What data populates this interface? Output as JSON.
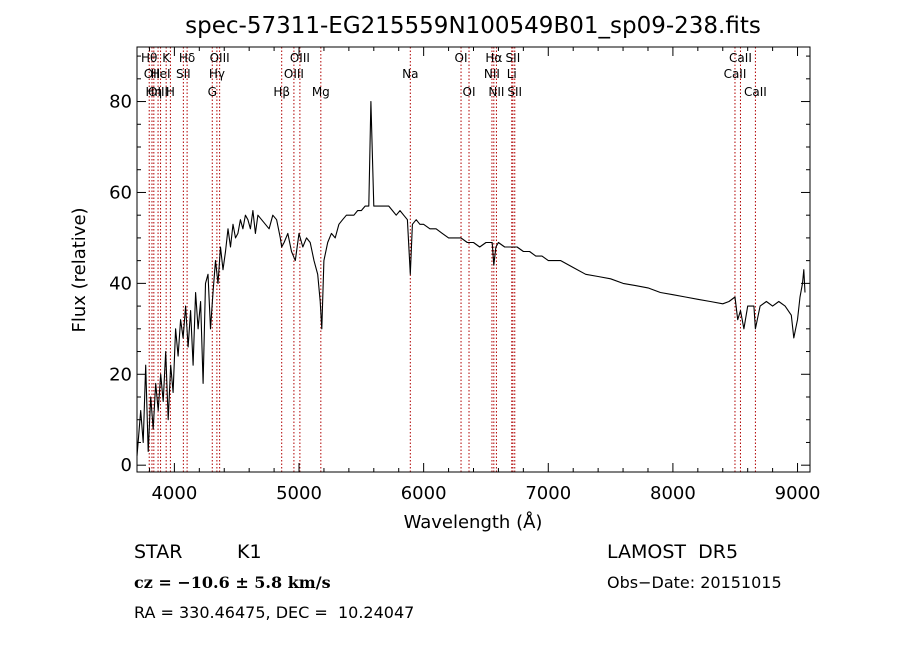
{
  "chart_data": {
    "type": "line",
    "title": "spec-57311-EG215559N100549B01_sp09-238.fits",
    "xlabel": "Wavelength (Å)",
    "ylabel": "Flux (relative)",
    "xlim": [
      3700,
      9100
    ],
    "ylim": [
      -1.5,
      92
    ],
    "x_ticks": [
      4000,
      5000,
      6000,
      7000,
      8000,
      9000
    ],
    "y_ticks": [
      0,
      20,
      40,
      60,
      80
    ],
    "grid": false,
    "line_color": "#000000",
    "marker_color": "#b00000",
    "series": [
      {
        "x": [
          3700,
          3730,
          3750,
          3770,
          3790,
          3810,
          3830,
          3850,
          3870,
          3890,
          3910,
          3930,
          3950,
          3970,
          3990,
          4010,
          4030,
          4050,
          4070,
          4090,
          4110,
          4130,
          4150,
          4170,
          4190,
          4210,
          4230,
          4250,
          4270,
          4290,
          4310,
          4330,
          4350,
          4370,
          4390,
          4410,
          4430,
          4450,
          4470,
          4490,
          4510,
          4530,
          4550,
          4570,
          4590,
          4610,
          4630,
          4650,
          4670,
          4700,
          4730,
          4760,
          4790,
          4820,
          4850,
          4861,
          4880,
          4910,
          4940,
          4970,
          5000,
          5030,
          5060,
          5090,
          5120,
          5150,
          5170,
          5183,
          5200,
          5230,
          5260,
          5290,
          5320,
          5350,
          5380,
          5410,
          5440,
          5470,
          5500,
          5530,
          5560,
          5577,
          5600,
          5630,
          5660,
          5690,
          5720,
          5750,
          5780,
          5810,
          5840,
          5870,
          5893,
          5910,
          5940,
          5970,
          6000,
          6050,
          6100,
          6150,
          6200,
          6250,
          6300,
          6350,
          6400,
          6450,
          6500,
          6550,
          6563,
          6580,
          6600,
          6650,
          6700,
          6750,
          6800,
          6850,
          6900,
          6950,
          7000,
          7100,
          7200,
          7300,
          7400,
          7500,
          7600,
          7700,
          7800,
          7900,
          8000,
          8100,
          8200,
          8300,
          8400,
          8450,
          8498,
          8520,
          8542,
          8570,
          8600,
          8650,
          8662,
          8700,
          8750,
          8800,
          8850,
          8900,
          8950,
          8970,
          9000,
          9020,
          9040,
          9050,
          9060
        ],
        "y": [
          2,
          12,
          5,
          22,
          3,
          15,
          8,
          18,
          12,
          20,
          14,
          25,
          10,
          22,
          16,
          30,
          24,
          32,
          28,
          35,
          26,
          34,
          22,
          38,
          30,
          36,
          18,
          40,
          42,
          30,
          38,
          45,
          40,
          48,
          43,
          47,
          52,
          48,
          53,
          50,
          51,
          54,
          52,
          55,
          54,
          52,
          56,
          51,
          55,
          54,
          53,
          52,
          55,
          54,
          50,
          48,
          49,
          51,
          47,
          45,
          51,
          48,
          50,
          49,
          45,
          42,
          36,
          30,
          45,
          49,
          51,
          50,
          53,
          54,
          55,
          55,
          55,
          56,
          56,
          57,
          57,
          80,
          57,
          57,
          57,
          57,
          57,
          56,
          55,
          56,
          55,
          54,
          42,
          53,
          54,
          53,
          53,
          52,
          52,
          51,
          50,
          50,
          50,
          49,
          49,
          48,
          49,
          49,
          44,
          48,
          49,
          48,
          48,
          48,
          47,
          47,
          46,
          46,
          45,
          45,
          43.5,
          42,
          41.5,
          41,
          40,
          39.5,
          39,
          38,
          37.5,
          37,
          36.5,
          36,
          35.5,
          36,
          37,
          32,
          34,
          30,
          35,
          35,
          30,
          35,
          36,
          35,
          36,
          35,
          33,
          28,
          32,
          37,
          40,
          43,
          38
        ]
      }
    ],
    "lines": [
      {
        "x": 3798,
        "label": "Hθ",
        "row": 1
      },
      {
        "x": 3820,
        "label": "OII",
        "row": 2
      },
      {
        "x": 3835,
        "label": "Hη",
        "row": 3
      },
      {
        "x": 3869,
        "label": "OIII",
        "row": 3
      },
      {
        "x": 3889,
        "label": "HeI",
        "row": 2
      },
      {
        "x": 3934,
        "label": "K",
        "row": 1
      },
      {
        "x": 3968,
        "label": "H",
        "row": 3
      },
      {
        "x": 4072,
        "label": "SII",
        "row": 2
      },
      {
        "x": 4102,
        "label": "Hδ",
        "row": 1
      },
      {
        "x": 4304,
        "label": "G",
        "row": 3
      },
      {
        "x": 4341,
        "label": "Hγ",
        "row": 2
      },
      {
        "x": 4363,
        "label": "OIII",
        "row": 1
      },
      {
        "x": 4861,
        "label": "Hβ",
        "row": 3
      },
      {
        "x": 4959,
        "label": "OIII",
        "row": 2
      },
      {
        "x": 5007,
        "label": "OIII",
        "row": 1
      },
      {
        "x": 5175,
        "label": "Mg",
        "row": 3
      },
      {
        "x": 5893,
        "label": "Na",
        "row": 2
      },
      {
        "x": 6300,
        "label": "OI",
        "row": 1
      },
      {
        "x": 6364,
        "label": "OI",
        "row": 3
      },
      {
        "x": 6548,
        "label": "NII",
        "row": 2
      },
      {
        "x": 6563,
        "label": "Hα",
        "row": 1
      },
      {
        "x": 6584,
        "label": "NII",
        "row": 3
      },
      {
        "x": 6707,
        "label": "Li",
        "row": 2
      },
      {
        "x": 6716,
        "label": "SII",
        "row": 1
      },
      {
        "x": 6731,
        "label": "SII",
        "row": 3
      },
      {
        "x": 8498,
        "label": "CaII",
        "row": 2
      },
      {
        "x": 8542,
        "label": "CaII",
        "row": 1
      },
      {
        "x": 8662,
        "label": "CaII",
        "row": 3
      }
    ]
  },
  "info": {
    "class_label": "STAR",
    "subclass": "K1",
    "survey": "LAMOST  DR5",
    "cz": "cz = −10.6 ± 5.8 km/s",
    "obs_date": "Obs−Date: 20151015",
    "coords": "RA = 330.46475, DEC =  10.24047"
  }
}
